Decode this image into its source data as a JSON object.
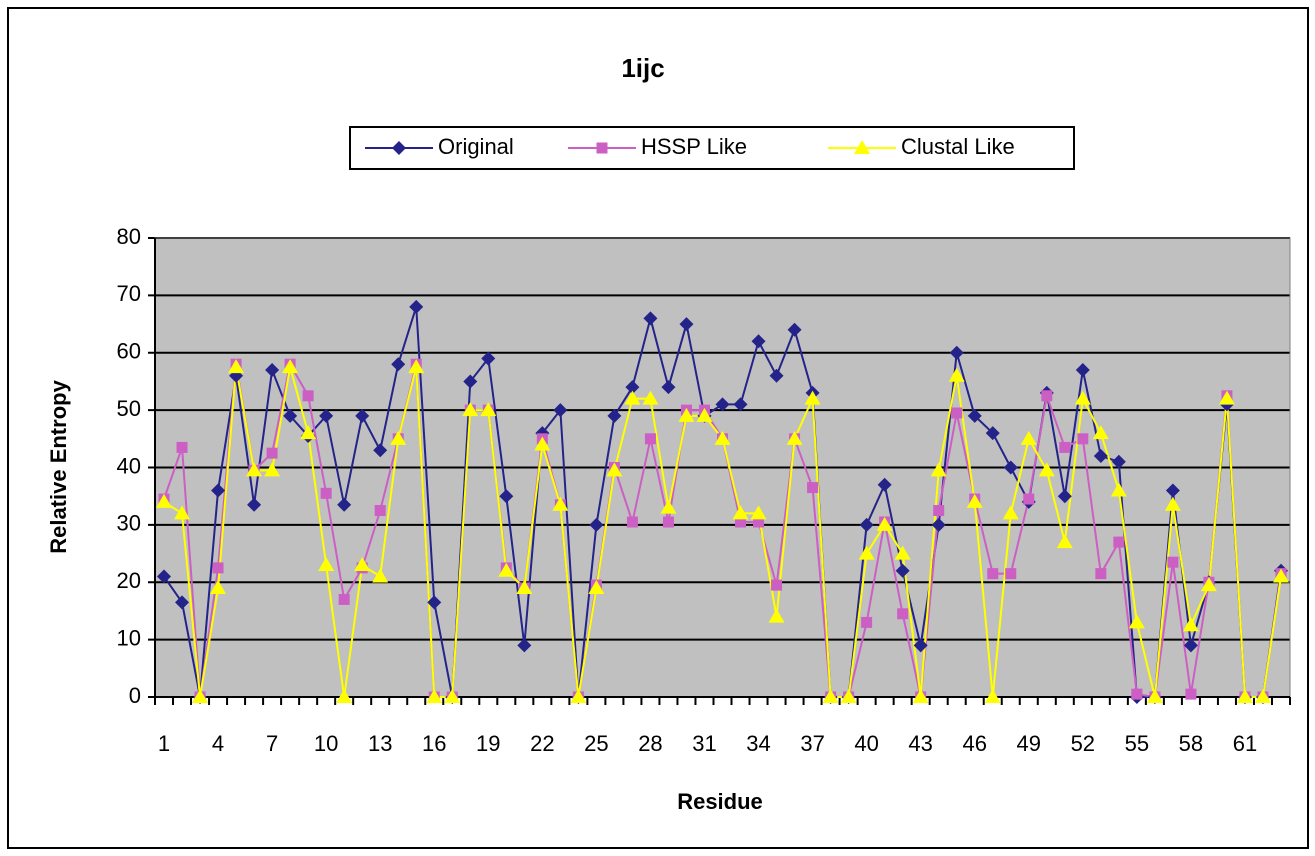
{
  "chart_data": {
    "type": "line",
    "title": "1ijc",
    "x_label": "Residue",
    "y_label": "Relative Entropy",
    "categories": [
      "1",
      null,
      null,
      "4",
      null,
      null,
      "7",
      null,
      null,
      "10",
      null,
      null,
      "13",
      null,
      null,
      "16",
      null,
      null,
      "19",
      null,
      null,
      "22",
      null,
      null,
      "25",
      null,
      null,
      "28",
      null,
      null,
      "31",
      null,
      null,
      "34",
      null,
      null,
      "37",
      null,
      null,
      "40",
      null,
      null,
      "43",
      null,
      null,
      "46",
      null,
      null,
      "49",
      null,
      null,
      "52",
      null,
      null,
      "55",
      null,
      null,
      "58",
      null,
      null,
      "61",
      null,
      null
    ],
    "ylim": [
      0,
      80
    ],
    "yticks": [
      0,
      10,
      20,
      30,
      40,
      50,
      60,
      70,
      80
    ],
    "grid": true,
    "legend": "top",
    "series": [
      {
        "name": "Original",
        "color": "#23238a",
        "marker": "diamond",
        "values": [
          21,
          16.5,
          0,
          36,
          56,
          33.5,
          57,
          49,
          45.5,
          49,
          33.5,
          49,
          43,
          58,
          68,
          16.5,
          0,
          55,
          59,
          35,
          9,
          46,
          50,
          0,
          30,
          49,
          54,
          66,
          54,
          65,
          49,
          51,
          51,
          62,
          56,
          64,
          53,
          0,
          0,
          30,
          37,
          22,
          9,
          30,
          60,
          49,
          46,
          40,
          34,
          53,
          35,
          57,
          42,
          41,
          0,
          0,
          36,
          9,
          20,
          51,
          0,
          0,
          22
        ]
      },
      {
        "name": "HSSP Like",
        "color": "#cc5fc4",
        "marker": "square",
        "values": [
          34.5,
          43.5,
          0,
          22.5,
          58,
          39.5,
          42.5,
          58,
          52.5,
          35.5,
          17,
          22.5,
          32.5,
          45,
          58,
          0,
          0,
          50,
          50,
          22.5,
          19,
          45,
          33.5,
          0,
          19.5,
          40,
          30.5,
          45,
          30.5,
          50,
          50,
          45,
          30.5,
          30.5,
          19.5,
          45,
          36.5,
          0,
          0,
          13,
          30.5,
          14.5,
          0,
          32.5,
          49.5,
          34.5,
          21.5,
          21.5,
          34.5,
          52.5,
          43.5,
          45,
          21.5,
          27,
          0.5,
          0,
          23.5,
          0.5,
          20,
          52.5,
          0,
          0,
          21.5
        ]
      },
      {
        "name": "Clustal Like",
        "color": "#ffff00",
        "marker": "triangle",
        "values": [
          34,
          32,
          0,
          19,
          57.5,
          39.5,
          39.5,
          57.5,
          46,
          23,
          0,
          23,
          21,
          45,
          57.5,
          0,
          0,
          50,
          50,
          22,
          19,
          44,
          33.5,
          0,
          19,
          39.5,
          52,
          52,
          33,
          49,
          49,
          45,
          32,
          32,
          14,
          45,
          52,
          0,
          0,
          25,
          30,
          25,
          0,
          39.5,
          56,
          34,
          0,
          32,
          45,
          39.5,
          27,
          52,
          46,
          36,
          13,
          0,
          33.5,
          12.5,
          19.5,
          52,
          0,
          0,
          21
        ]
      }
    ]
  }
}
